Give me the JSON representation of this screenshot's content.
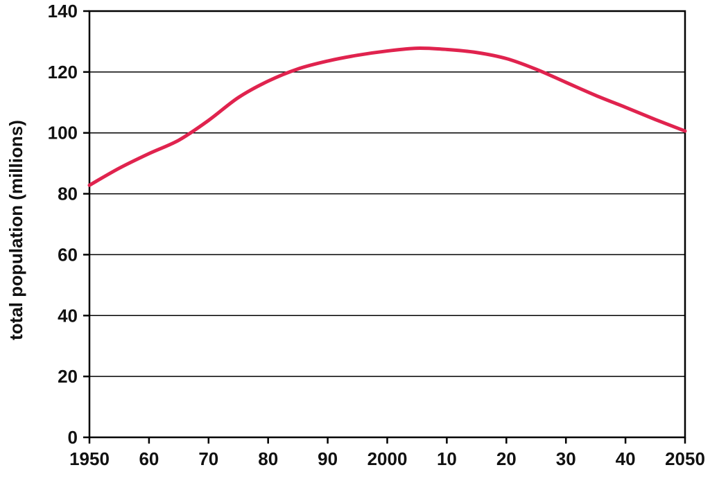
{
  "chart_data": {
    "type": "line",
    "title": "",
    "xlabel": "",
    "ylabel": "total population (millions)",
    "xlim": [
      1950,
      2050
    ],
    "ylim": [
      0,
      140
    ],
    "grid": true,
    "x_ticks": [
      1950,
      1960,
      1970,
      1980,
      1990,
      2000,
      2010,
      2020,
      2030,
      2040,
      2050
    ],
    "x_tick_labels": [
      "1950",
      "60",
      "70",
      "80",
      "90",
      "2000",
      "10",
      "20",
      "30",
      "40",
      "2050"
    ],
    "y_ticks": [
      0,
      20,
      40,
      60,
      80,
      100,
      120,
      140
    ],
    "y_tick_labels": [
      "0",
      "20",
      "40",
      "60",
      "80",
      "100",
      "120",
      "140"
    ],
    "series": [
      {
        "color": "#e0234e",
        "x": [
          1950,
          1955,
          1960,
          1965,
          1970,
          1975,
          1980,
          1985,
          1990,
          1995,
          2000,
          2005,
          2010,
          2015,
          2020,
          2025,
          2030,
          2035,
          2040,
          2045,
          2050
        ],
        "values": [
          82.8,
          88.4,
          93.2,
          97.6,
          104.1,
          111.6,
          117.0,
          121.0,
          123.6,
          125.5,
          126.9,
          127.8,
          127.4,
          126.4,
          124.4,
          120.9,
          116.6,
          112.3,
          108.4,
          104.4,
          100.6
        ]
      }
    ]
  }
}
